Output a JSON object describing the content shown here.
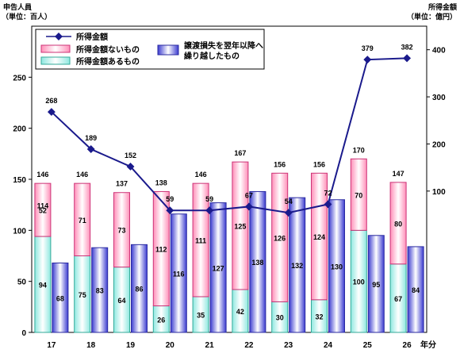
{
  "chart_data": {
    "type": "bar",
    "left_axis_title": "申告人員",
    "left_axis_unit": "（単位：百人）",
    "right_axis_title": "所得金額",
    "right_axis_unit": "（単位：億円）",
    "x_axis_unit": "年分",
    "categories": [
      "17",
      "18",
      "19",
      "20",
      "21",
      "22",
      "23",
      "24",
      "25",
      "26"
    ],
    "left_ylim": [
      0,
      300
    ],
    "left_ticks": [
      0,
      50,
      100,
      150,
      200,
      250
    ],
    "right_ylim": [
      -200,
      450
    ],
    "right_ticks": [
      100,
      200,
      300,
      400
    ],
    "legend": {
      "line": "所得金額",
      "pink": "所得金額ないもの",
      "cyan": "所得金額あるもの",
      "blue_line1": "譲渡損失を翌年以降へ",
      "blue_line2": "繰り越したもの"
    },
    "series": [
      {
        "name": "所得金額あるもの",
        "axis": "left",
        "stack": "a",
        "values": [
          94,
          75,
          64,
          26,
          35,
          42,
          30,
          32,
          100,
          67
        ]
      },
      {
        "name": "所得金額ないもの",
        "axis": "left",
        "stack": "a",
        "values": [
          52,
          71,
          73,
          112,
          111,
          125,
          126,
          124,
          70,
          80
        ]
      },
      {
        "name": "譲渡損失を翌年以降へ繰り越したもの",
        "axis": "left",
        "stack": "b",
        "values": [
          68,
          83,
          86,
          116,
          127,
          138,
          132,
          130,
          95,
          84
        ]
      },
      {
        "name": "所得金額",
        "axis": "right",
        "type": "line",
        "values": [
          268,
          189,
          152,
          59,
          59,
          67,
          54,
          72,
          379,
          382
        ]
      }
    ],
    "stack_totals": [
      146,
      146,
      137,
      138,
      146,
      167,
      156,
      156,
      170,
      147
    ],
    "overlap_label": "114",
    "colors": {
      "pink_stroke": "#cc3377",
      "cyan_stroke": "#33aa99",
      "blue_stroke": "#2a2aa0",
      "line": "#1a1a8c"
    }
  }
}
